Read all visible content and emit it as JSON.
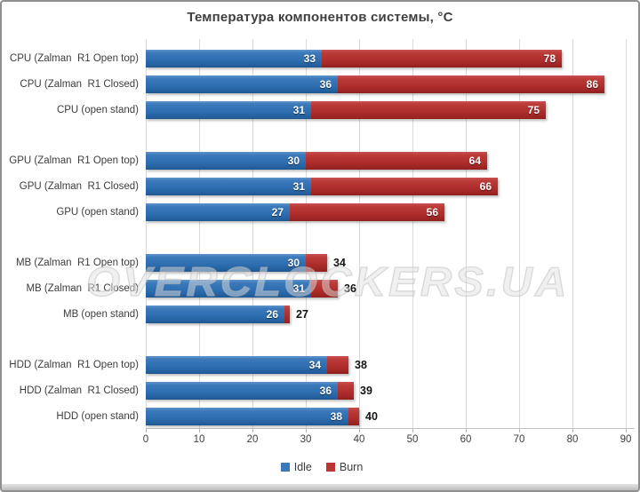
{
  "title": "Температура компонентов системы, °C",
  "watermark": "OVERCLOCKERS.UA",
  "legend": {
    "items": [
      {
        "label": "Idle",
        "color": "#3B78B9"
      },
      {
        "label": "Burn",
        "color": "#BB3533"
      }
    ]
  },
  "axis": {
    "xticks": [
      0,
      10,
      20,
      30,
      40,
      50,
      60,
      70,
      80,
      90
    ]
  },
  "colors": {
    "idle": "#3B78B9",
    "burn": "#BB3533",
    "grid": "#D9D9D9",
    "text": "#3F3F3F",
    "axis_line": "#C3C3C3"
  },
  "chart_data": {
    "type": "bar",
    "orientation": "horizontal",
    "stacked": true,
    "title": "Температура компонентов системы, °C",
    "categories": [
      "CPU (Zalman  R1 Open top)",
      "CPU (Zalman  R1 Closed)",
      "CPU (open stand)",
      "GPU (Zalman  R1 Open top)",
      "GPU (Zalman  R1 Closed)",
      "GPU (open stand)",
      "MB (Zalman  R1 Open top)",
      "MB (Zalman  R1 Closed)",
      "MB (open stand)",
      "HDD (Zalman  R1 Open top)",
      "HDD (Zalman  R1 Closed)",
      "HDD (open stand)"
    ],
    "series": [
      {
        "name": "Idle",
        "color": "#3B78B9",
        "values": [
          33,
          36,
          31,
          30,
          31,
          27,
          30,
          31,
          26,
          34,
          36,
          38
        ]
      },
      {
        "name": "Burn",
        "color": "#BB3533",
        "values": [
          78,
          86,
          75,
          64,
          66,
          56,
          34,
          36,
          27,
          38,
          39,
          40
        ]
      }
    ],
    "xlim": [
      0,
      91.5
    ],
    "xticks": [
      0,
      10,
      20,
      30,
      40,
      50,
      60,
      70,
      80,
      90
    ],
    "group_size": 3,
    "grid": true,
    "legend_position": "bottom"
  }
}
